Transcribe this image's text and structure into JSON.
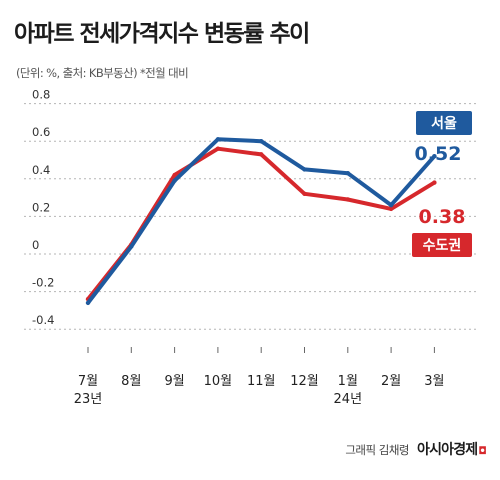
{
  "header": {
    "title": "아파트 전세가격지수 변동률 추이",
    "subtitle": "(단위: %, 출처: KB부동산) *전월 대비"
  },
  "credit": {
    "text": "그래픽 김채령",
    "brand": "아시아경제"
  },
  "colors": {
    "seoul": "#1f5a9e",
    "metro": "#d6282c",
    "grid": "#b5b5b5"
  },
  "chart_data": {
    "type": "line",
    "categories": [
      "7월\n23년",
      "8월",
      "9월",
      "10월",
      "11월",
      "12월",
      "1월\n24년",
      "2월",
      "3월"
    ],
    "yticks": [
      "0.8",
      "0.6",
      "0.4",
      "0.2",
      "0",
      "-0.2",
      "-0.4"
    ],
    "ytick_values": [
      0.8,
      0.6,
      0.4,
      0.2,
      0,
      -0.2,
      -0.4
    ],
    "ylim": [
      -0.47,
      0.82
    ],
    "grid": true,
    "legend": "labels at end of lines",
    "series": [
      {
        "name": "서울",
        "color": "#1f5a9e",
        "values": [
          -0.26,
          0.04,
          0.39,
          0.61,
          0.6,
          0.45,
          0.43,
          0.26,
          0.52
        ],
        "end_label": "0.52"
      },
      {
        "name": "수도권",
        "color": "#d6282c",
        "values": [
          -0.24,
          0.05,
          0.42,
          0.56,
          0.53,
          0.32,
          0.29,
          0.24,
          0.38
        ],
        "end_label": "0.38"
      }
    ]
  }
}
